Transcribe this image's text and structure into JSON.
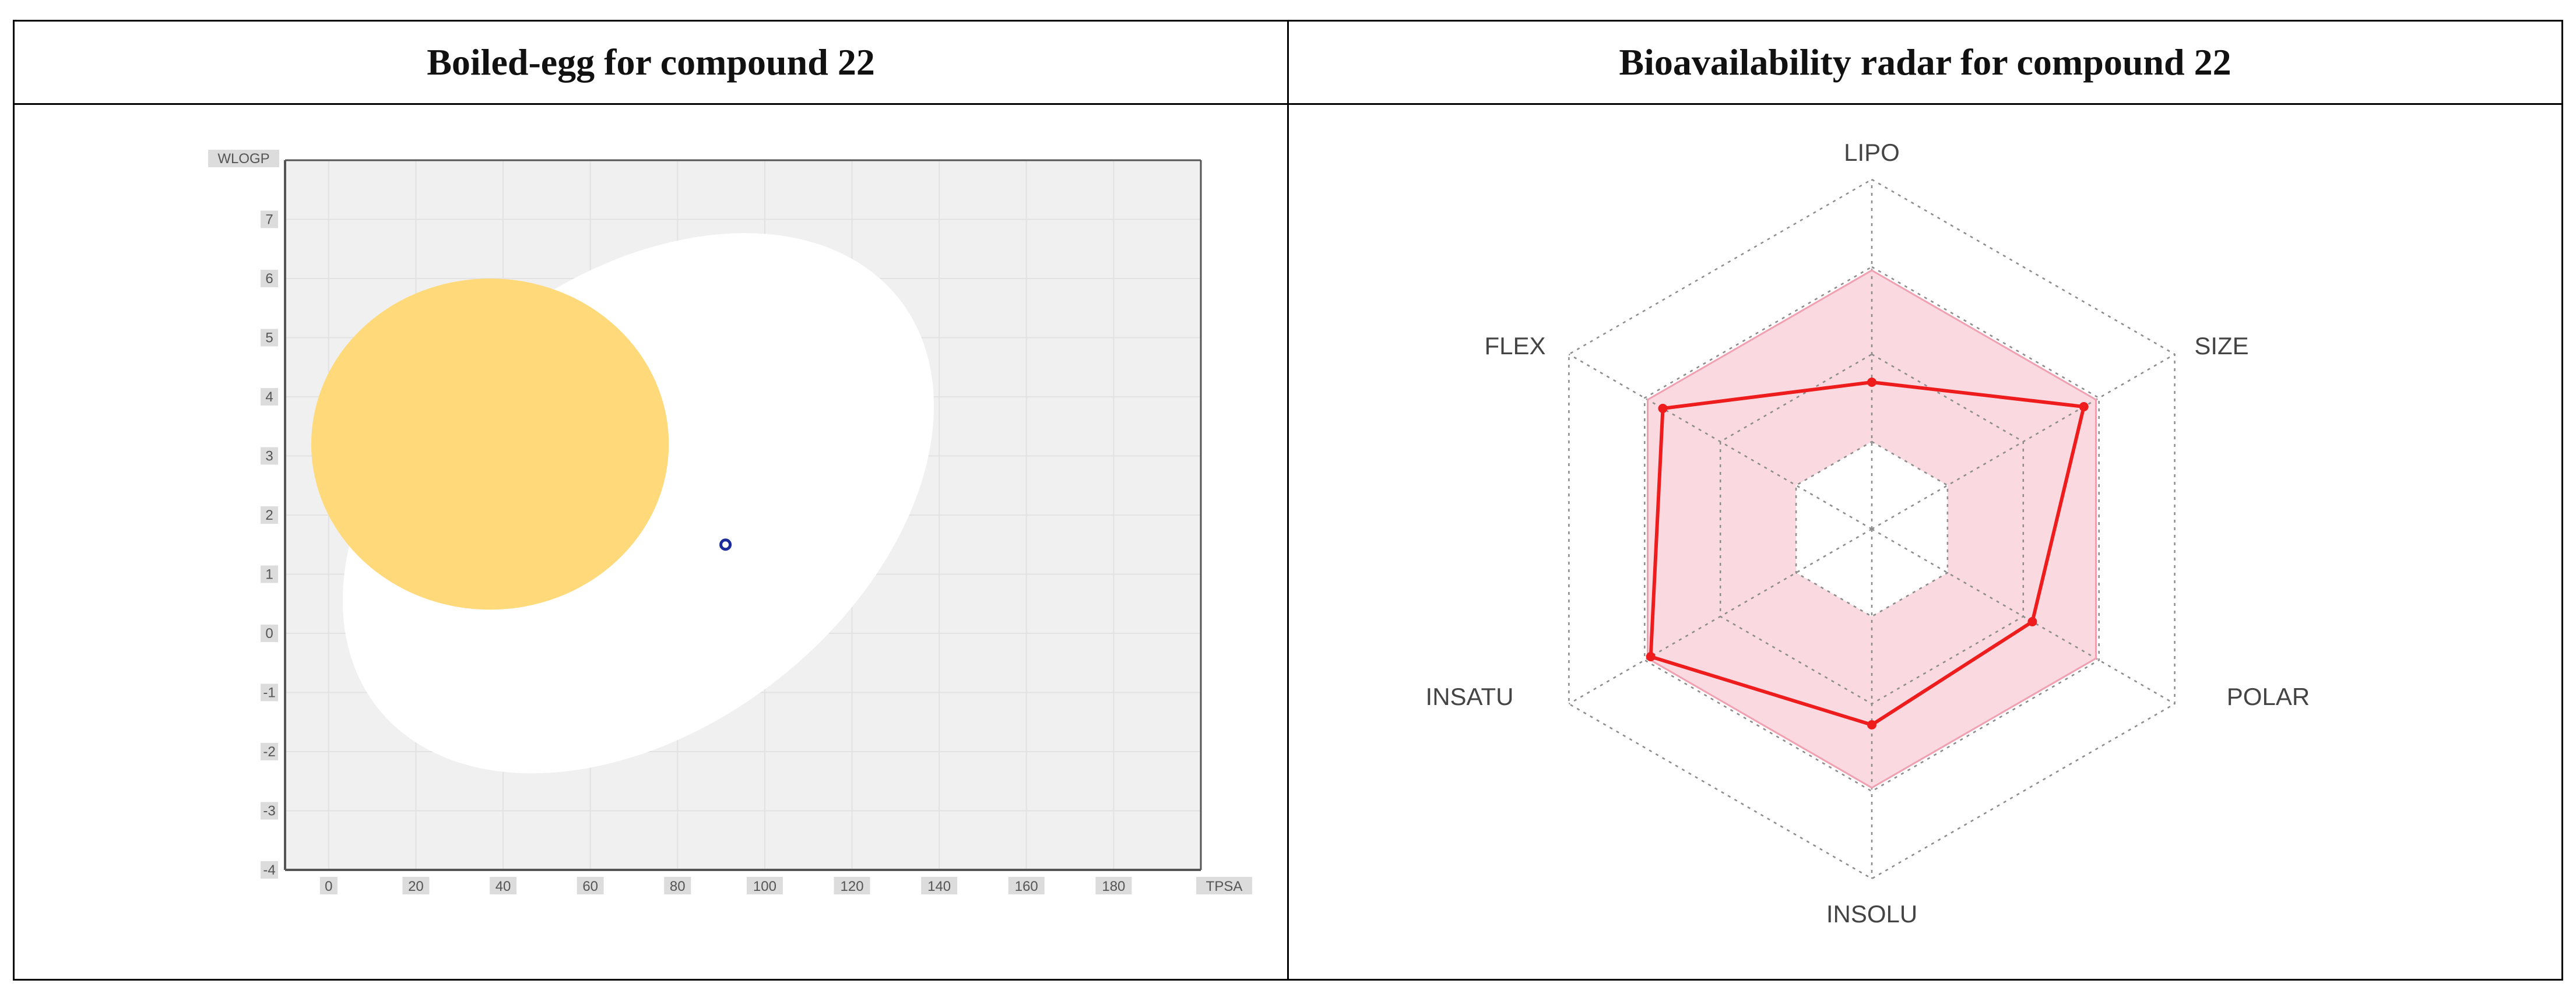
{
  "panels": {
    "left_title": "Boiled-egg for compound 22",
    "right_title": "Bioavailability radar for compound 22"
  },
  "chart_data": [
    {
      "type": "scatter",
      "xlabel": "TPSA",
      "ylabel": "WLOGP",
      "xlim": [
        -10,
        200
      ],
      "ylim": [
        -4,
        8
      ],
      "xticks": [
        0,
        20,
        40,
        60,
        80,
        100,
        120,
        140,
        160,
        180
      ],
      "yticks": [
        7,
        6,
        5,
        4,
        3,
        2,
        1,
        0,
        -1,
        -2,
        -3,
        -4
      ],
      "grid": true,
      "regions": [
        {
          "name": "white",
          "color": "#ffffff",
          "center": [
            71,
            2.2
          ],
          "radius_x": 76,
          "radius_y": 3.8,
          "rotation_deg": -38
        },
        {
          "name": "yolk",
          "color": "#ffd97a",
          "center": [
            37,
            3.2
          ],
          "radius_x": 41,
          "radius_y": 2.8
        }
      ],
      "points": [
        {
          "x": 91,
          "y": 1.5,
          "color": "#1a2a9a"
        }
      ],
      "colors": {
        "plot_bg": "#f0f0f0",
        "grid": "#e2e2e2",
        "axis": "#555555"
      }
    },
    {
      "type": "radar",
      "axes": [
        "LIPO",
        "SIZE",
        "POLAR",
        "INSOLU",
        "INSATU",
        "FLEX"
      ],
      "values": [
        0.42,
        0.7,
        0.53,
        0.56,
        0.73,
        0.69
      ],
      "optimal_range_outer": [
        0.74,
        0.74,
        0.74,
        0.74,
        0.74,
        0.74
      ],
      "optimal_range_inner": [
        0.25,
        0.25,
        0.25,
        0.25,
        0.25,
        0.25
      ],
      "grid_levels": [
        0.25,
        0.5,
        0.75,
        1.0
      ],
      "colors": {
        "series": "#ee1c1c",
        "band": "#f9d3da",
        "grid": "#8c8c8c"
      }
    }
  ]
}
